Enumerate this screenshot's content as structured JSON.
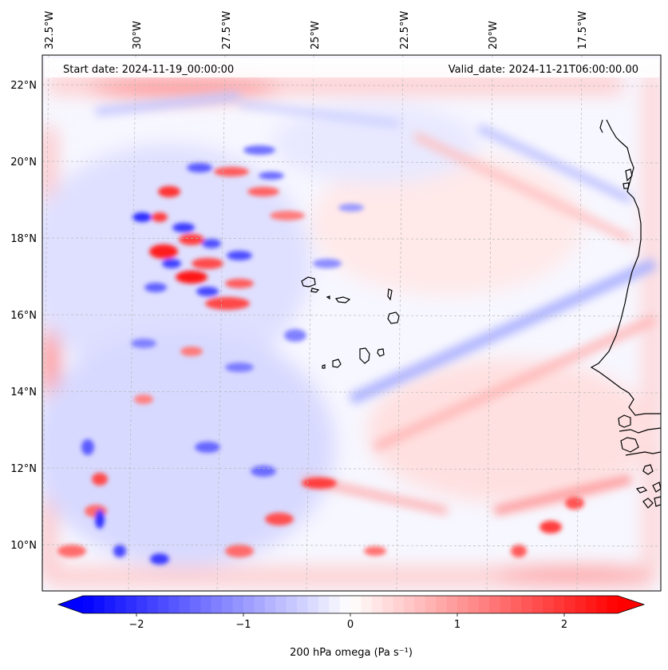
{
  "header": {
    "start_date": "Start date: 2024-11-19_00:00:00",
    "valid_date": "Valid_date: 2024-11-21T06:00:00.00"
  },
  "map": {
    "lon_ticks": [
      "32.5°W",
      "30°W",
      "27.5°W",
      "25°W",
      "22.5°W",
      "20°W",
      "17.5°W"
    ],
    "lat_ticks": [
      "22°N",
      "20°N",
      "18°N",
      "16°N",
      "14°N",
      "12°N",
      "10°N"
    ],
    "gridlines": "dashed grey",
    "field": "diverging blue-white-red contourf of vertical velocity",
    "coastline_color": "#000000"
  },
  "colorbar": {
    "label": "200 hPa omega (Pa s⁻¹)",
    "ticks": [
      "−2",
      "−1",
      "0",
      "1",
      "2"
    ],
    "tick_values": [
      -2,
      -1,
      0,
      1,
      2
    ],
    "range": [
      -2.5,
      2.5
    ],
    "extend": "both",
    "low_color": "#0000ff",
    "mid_color": "#ffffff",
    "high_color": "#ff0000"
  }
}
